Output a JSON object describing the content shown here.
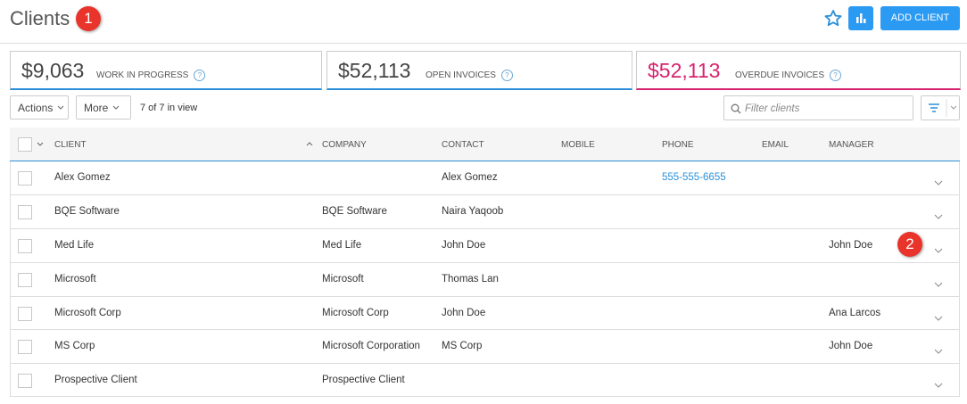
{
  "header": {
    "title": "Clients",
    "badge": "1"
  },
  "buttons": {
    "add_client": "ADD CLIENT"
  },
  "summary": [
    {
      "amount": "$9,063",
      "label": "WORK IN PROGRESS",
      "help": "?"
    },
    {
      "amount": "$52,113",
      "label": "OPEN INVOICES",
      "help": "?"
    },
    {
      "amount": "$52,113",
      "label": "OVERDUE INVOICES",
      "help": "?"
    }
  ],
  "toolbar": {
    "actions": "Actions",
    "more": "More",
    "count": "7 of 7 in view",
    "filter_placeholder": "Filter clients"
  },
  "table": {
    "columns": [
      "CLIENT",
      "COMPANY",
      "CONTACT",
      "MOBILE",
      "PHONE",
      "EMAIL",
      "MANAGER"
    ],
    "rows": [
      [
        "Alex Gomez",
        null,
        "Alex Gomez",
        null,
        "555-555-6655",
        null,
        null
      ],
      [
        "BQE Software",
        "BQE Software",
        "Naira Yaqoob",
        null,
        null,
        null,
        null
      ],
      [
        "Med Life",
        "Med Life",
        "John Doe",
        null,
        null,
        null,
        "John Doe"
      ],
      [
        "Microsoft",
        "Microsoft",
        "Thomas Lan",
        null,
        null,
        null,
        null
      ],
      [
        "Microsoft Corp",
        "Microsoft Corp",
        "John Doe",
        null,
        null,
        null,
        "Ana Larcos"
      ],
      [
        "MS Corp",
        "Microsoft Corporation",
        "MS Corp",
        null,
        null,
        null,
        "John Doe"
      ],
      [
        "Prospective Client",
        "Prospective Client",
        null,
        null,
        null,
        null,
        null
      ]
    ]
  },
  "annotations": [
    {
      "label": "2",
      "row": 2
    }
  ]
}
